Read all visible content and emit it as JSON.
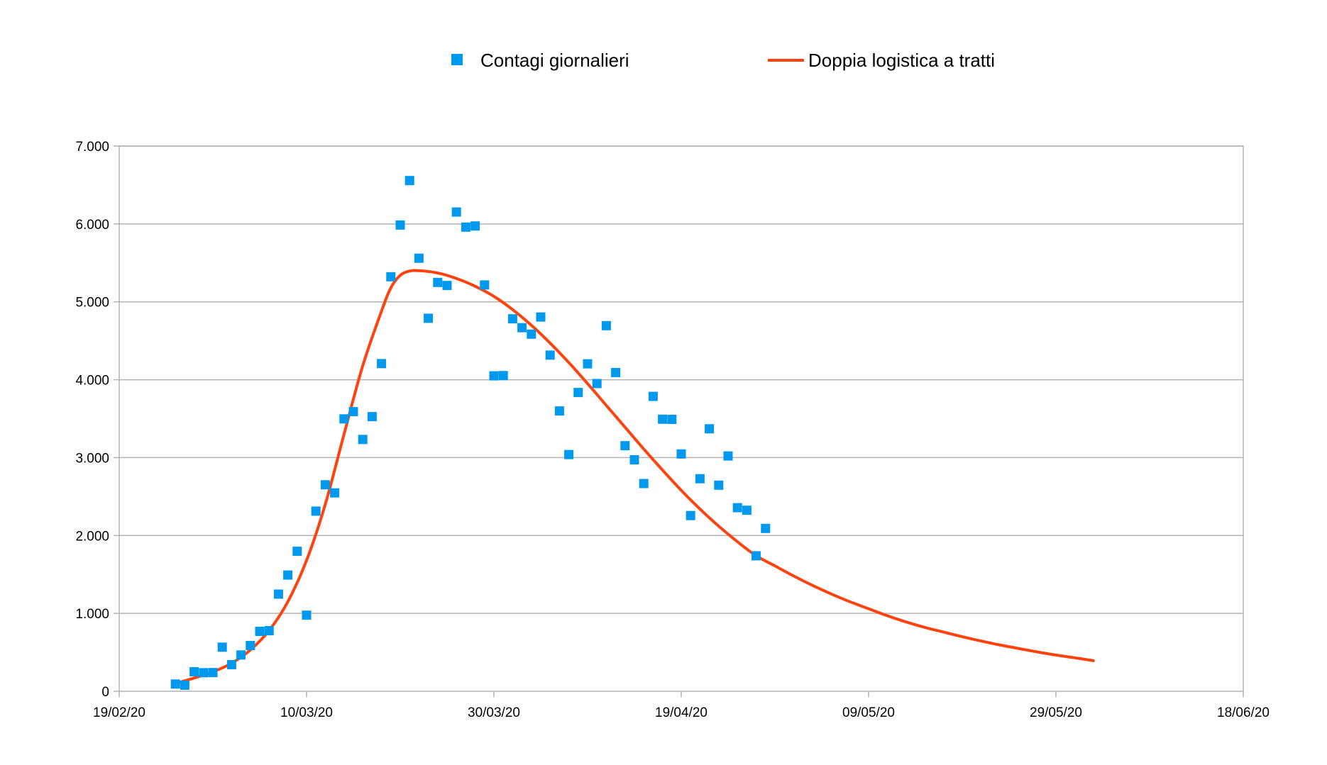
{
  "chart_data": {
    "type": "scatter",
    "title": "",
    "xlabel": "",
    "ylabel": "",
    "xlim": [
      "19/02/20",
      "18/06/20"
    ],
    "ylim": [
      0,
      7000
    ],
    "x_ticks": [
      "19/02/20",
      "10/03/20",
      "30/03/20",
      "19/04/20",
      "09/05/20",
      "29/05/20",
      "18/06/20"
    ],
    "y_ticks": [
      "0",
      "1.000",
      "2.000",
      "3.000",
      "4.000",
      "5.000",
      "6.000",
      "7.000"
    ],
    "grid": true,
    "legend": {
      "position": "top",
      "entries": [
        {
          "name": "Contagi giornalieri",
          "color": "#0099ee",
          "marker": "square"
        },
        {
          "name": "Doppia logistica a tratti",
          "color": "#ff420e",
          "marker": "line"
        }
      ]
    },
    "series": [
      {
        "name": "Contagi giornalieri",
        "kind": "scatter",
        "color": "#0099ee",
        "points": [
          [
            "25/02/20",
            93
          ],
          [
            "26/02/20",
            78
          ],
          [
            "27/02/20",
            250
          ],
          [
            "28/02/20",
            238
          ],
          [
            "29/02/20",
            240
          ],
          [
            "01/03/20",
            566
          ],
          [
            "02/03/20",
            342
          ],
          [
            "03/03/20",
            466
          ],
          [
            "04/03/20",
            587
          ],
          [
            "05/03/20",
            769
          ],
          [
            "06/03/20",
            778
          ],
          [
            "07/03/20",
            1247
          ],
          [
            "08/03/20",
            1492
          ],
          [
            "09/03/20",
            1797
          ],
          [
            "10/03/20",
            977
          ],
          [
            "11/03/20",
            2313
          ],
          [
            "12/03/20",
            2651
          ],
          [
            "13/03/20",
            2547
          ],
          [
            "14/03/20",
            3497
          ],
          [
            "15/03/20",
            3590
          ],
          [
            "16/03/20",
            3233
          ],
          [
            "17/03/20",
            3526
          ],
          [
            "18/03/20",
            4207
          ],
          [
            "19/03/20",
            5322
          ],
          [
            "20/03/20",
            5986
          ],
          [
            "21/03/20",
            6557
          ],
          [
            "22/03/20",
            5560
          ],
          [
            "23/03/20",
            4789
          ],
          [
            "24/03/20",
            5249
          ],
          [
            "25/03/20",
            5210
          ],
          [
            "26/03/20",
            6153
          ],
          [
            "27/03/20",
            5959
          ],
          [
            "28/03/20",
            5974
          ],
          [
            "29/03/20",
            5217
          ],
          [
            "30/03/20",
            4050
          ],
          [
            "31/03/20",
            4053
          ],
          [
            "01/04/20",
            4782
          ],
          [
            "02/04/20",
            4668
          ],
          [
            "03/04/20",
            4585
          ],
          [
            "04/04/20",
            4805
          ],
          [
            "05/04/20",
            4316
          ],
          [
            "06/04/20",
            3599
          ],
          [
            "07/04/20",
            3039
          ],
          [
            "08/04/20",
            3836
          ],
          [
            "09/04/20",
            4204
          ],
          [
            "10/04/20",
            3951
          ],
          [
            "11/04/20",
            4694
          ],
          [
            "12/04/20",
            4092
          ],
          [
            "13/04/20",
            3153
          ],
          [
            "14/04/20",
            2972
          ],
          [
            "15/04/20",
            2667
          ],
          [
            "16/04/20",
            3786
          ],
          [
            "17/04/20",
            3493
          ],
          [
            "18/04/20",
            3491
          ],
          [
            "19/04/20",
            3047
          ],
          [
            "20/04/20",
            2256
          ],
          [
            "21/04/20",
            2729
          ],
          [
            "22/04/20",
            3370
          ],
          [
            "23/04/20",
            2646
          ],
          [
            "24/04/20",
            3021
          ],
          [
            "25/04/20",
            2357
          ],
          [
            "26/04/20",
            2324
          ],
          [
            "27/04/20",
            1739
          ],
          [
            "28/04/20",
            2091
          ]
        ]
      },
      {
        "name": "Doppia logistica a tratti",
        "kind": "line",
        "color": "#ff420e",
        "points": [
          [
            "25/02/20",
            100
          ],
          [
            "27/02/20",
            170
          ],
          [
            "29/02/20",
            250
          ],
          [
            "02/03/20",
            360
          ],
          [
            "04/03/20",
            530
          ],
          [
            "06/03/20",
            780
          ],
          [
            "08/03/20",
            1150
          ],
          [
            "10/03/20",
            1680
          ],
          [
            "12/03/20",
            2400
          ],
          [
            "14/03/20",
            3300
          ],
          [
            "16/03/20",
            4180
          ],
          [
            "18/03/20",
            4880
          ],
          [
            "19/03/20",
            5180
          ],
          [
            "20/03/20",
            5340
          ],
          [
            "21/03/20",
            5395
          ],
          [
            "22/03/20",
            5400
          ],
          [
            "24/03/20",
            5370
          ],
          [
            "26/03/20",
            5300
          ],
          [
            "28/03/20",
            5200
          ],
          [
            "30/03/20",
            5070
          ],
          [
            "01/04/20",
            4900
          ],
          [
            "03/04/20",
            4700
          ],
          [
            "05/04/20",
            4470
          ],
          [
            "07/04/20",
            4220
          ],
          [
            "09/04/20",
            3950
          ],
          [
            "11/04/20",
            3670
          ],
          [
            "13/04/20",
            3390
          ],
          [
            "15/04/20",
            3110
          ],
          [
            "17/04/20",
            2840
          ],
          [
            "19/04/20",
            2580
          ],
          [
            "21/04/20",
            2340
          ],
          [
            "23/04/20",
            2120
          ],
          [
            "25/04/20",
            1920
          ],
          [
            "27/04/20",
            1740
          ],
          [
            "29/04/20",
            1610
          ],
          [
            "01/05/20",
            1480
          ],
          [
            "03/05/20",
            1360
          ],
          [
            "05/05/20",
            1250
          ],
          [
            "07/05/20",
            1150
          ],
          [
            "09/05/20",
            1060
          ],
          [
            "11/05/20",
            970
          ],
          [
            "13/05/20",
            890
          ],
          [
            "15/05/20",
            820
          ],
          [
            "17/05/20",
            760
          ],
          [
            "19/05/20",
            700
          ],
          [
            "21/05/20",
            645
          ],
          [
            "23/05/20",
            595
          ],
          [
            "25/05/20",
            550
          ],
          [
            "27/05/20",
            505
          ],
          [
            "29/05/20",
            465
          ],
          [
            "31/05/20",
            430
          ],
          [
            "02/06/20",
            392
          ]
        ]
      }
    ]
  }
}
